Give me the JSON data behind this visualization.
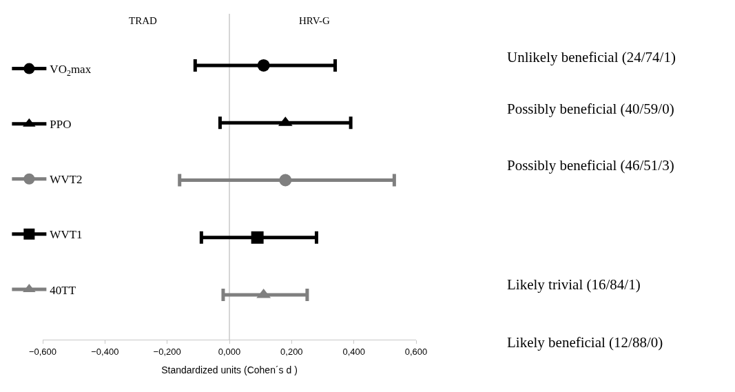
{
  "chart_data": {
    "type": "scatter",
    "orientation": "horizontal",
    "xlabel": "Standardized units (Cohen´s d )",
    "categories": [
      null,
      null,
      null,
      null,
      null
    ],
    "series": [
      {
        "name": "VO$_{2}$max",
        "color": "#000000",
        "marker": "circle",
        "values": [
          0.11,
          null,
          null,
          null,
          null
        ],
        "errors": [
          [
            -0.11,
            0.34
          ],
          null,
          null,
          null,
          null
        ]
      },
      {
        "name": "PPO",
        "color": "#000000",
        "marker": "triangle",
        "values": [
          null,
          0.18,
          null,
          null,
          null
        ],
        "errors": [
          null,
          [
            -0.03,
            0.39
          ],
          null,
          null,
          null
        ]
      },
      {
        "name": "WVT2",
        "color": "#7f7f7f",
        "marker": "circle",
        "values": [
          null,
          null,
          0.18,
          null,
          null
        ],
        "errors": [
          null,
          null,
          [
            -0.16,
            0.53
          ],
          null,
          null
        ]
      },
      {
        "name": "WVT1",
        "color": "#000000",
        "marker": "square",
        "values": [
          null,
          null,
          null,
          0.09,
          null
        ],
        "errors": [
          null,
          null,
          null,
          [
            -0.09,
            0.28
          ],
          null
        ]
      },
      {
        "name": "40TT",
        "color": "#7f7f7f",
        "marker": "triangle",
        "values": [
          null,
          null,
          null,
          null,
          0.11
        ],
        "errors": [
          null,
          null,
          null,
          null,
          [
            -0.02,
            0.25
          ]
        ]
      }
    ],
    "xlim": [
      -0.6,
      0.6
    ],
    "xticks": [
      {
        "value": -0.6,
        "label": "−0,600"
      },
      {
        "value": -0.4,
        "label": "−0,400"
      },
      {
        "value": -0.2,
        "label": "−0,200"
      },
      {
        "value": 0,
        "label": "0,000"
      },
      {
        "value": 0.2,
        "label": "0,200"
      },
      {
        "value": 0.4,
        "label": "0,400"
      },
      {
        "value": 0.6,
        "label": "0,600"
      }
    ],
    "ref_lines": [
      {
        "axis": "x",
        "value": 0,
        "color": "#c8c8c8"
      }
    ],
    "annotations": [
      "TRAD",
      "HRV-G",
      "Unlikely beneficial (24/74/1)",
      "Possibly beneficial (40/59/0)",
      "Possibly beneficial (46/51/3)",
      "Likely trivial (16/84/1)",
      "Likely beneficial (12/88/0)"
    ],
    "legend": "left",
    "tick_labels": "x",
    "grid": false
  }
}
